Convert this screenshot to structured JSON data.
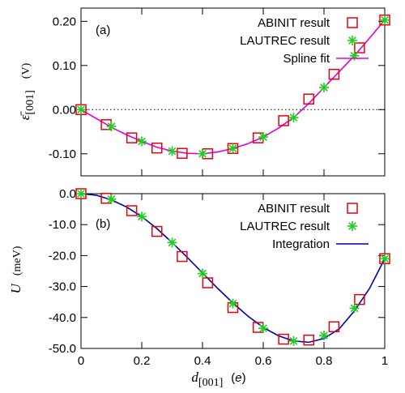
{
  "chart_data": [
    {
      "type": "scatter",
      "panel_label": "(a)",
      "ylabel_symbol": "ε̄",
      "ylabel_subscript": "[001]",
      "ylabel_unit": "(V)",
      "xlim": [
        0,
        1
      ],
      "ylim": [
        -0.15,
        0.23
      ],
      "yticks": [
        {
          "v": 0.2,
          "label": "0.20"
        },
        {
          "v": 0.1,
          "label": "0.10"
        },
        {
          "v": 0.0,
          "label": "0.00"
        },
        {
          "v": -0.1,
          "label": "-0.10"
        }
      ],
      "zero_line": true,
      "legend_position": "top-right",
      "series": [
        {
          "name": "ABINIT result",
          "marker": "open-square",
          "color": "#e8000b",
          "x": [
            0,
            0.083,
            0.167,
            0.25,
            0.333,
            0.417,
            0.5,
            0.583,
            0.667,
            0.75,
            0.833,
            0.917,
            1.0
          ],
          "y": [
            0.0,
            -0.034,
            -0.064,
            -0.087,
            -0.099,
            -0.1,
            -0.088,
            -0.064,
            -0.025,
            0.024,
            0.08,
            0.14,
            0.203
          ]
        },
        {
          "name": "LAUTREC result",
          "marker": "asterisk",
          "color": "#22cc22",
          "x": [
            0,
            0.1,
            0.2,
            0.3,
            0.4,
            0.5,
            0.6,
            0.7,
            0.8,
            0.9,
            1.0
          ],
          "y": [
            0.0,
            -0.038,
            -0.072,
            -0.094,
            -0.1,
            -0.088,
            -0.062,
            -0.018,
            0.05,
            0.122,
            0.203
          ]
        },
        {
          "name": "Spline fit",
          "line": true,
          "color": "#dd00dd",
          "x": [
            0,
            0.05,
            0.1,
            0.15,
            0.2,
            0.25,
            0.3,
            0.35,
            0.4,
            0.45,
            0.5,
            0.55,
            0.6,
            0.65,
            0.7,
            0.75,
            0.8,
            0.85,
            0.9,
            0.95,
            1.0
          ],
          "y": [
            0.0,
            -0.02,
            -0.04,
            -0.057,
            -0.072,
            -0.085,
            -0.094,
            -0.099,
            -0.1,
            -0.096,
            -0.088,
            -0.077,
            -0.062,
            -0.042,
            -0.018,
            0.014,
            0.05,
            0.086,
            0.122,
            0.162,
            0.203
          ]
        }
      ]
    },
    {
      "type": "scatter",
      "panel_label": "(b)",
      "ylabel_symbol": "U",
      "ylabel_unit": "(meV)",
      "xlabel_symbol": "d",
      "xlabel_subscript": "[001]",
      "xlabel_unit_symbol": "e",
      "xlim": [
        0,
        1
      ],
      "ylim": [
        -50,
        0
      ],
      "yticks": [
        {
          "v": 0,
          "label": "0.0"
        },
        {
          "v": -10,
          "label": "-10.0"
        },
        {
          "v": -20,
          "label": "-20.0"
        },
        {
          "v": -30,
          "label": "-30.0"
        },
        {
          "v": -40,
          "label": "-40.0"
        },
        {
          "v": -50,
          "label": "-50.0"
        }
      ],
      "xticks": [
        {
          "v": 0,
          "label": "0"
        },
        {
          "v": 0.2,
          "label": "0.2"
        },
        {
          "v": 0.4,
          "label": "0.4"
        },
        {
          "v": 0.6,
          "label": "0.6"
        },
        {
          "v": 0.8,
          "label": "0.8"
        },
        {
          "v": 1.0,
          "label": "1"
        }
      ],
      "legend_position": "top-right",
      "series": [
        {
          "name": "ABINIT result",
          "marker": "open-square",
          "color": "#e8000b",
          "x": [
            0,
            0.083,
            0.167,
            0.25,
            0.333,
            0.417,
            0.5,
            0.583,
            0.667,
            0.75,
            0.833,
            0.917,
            1.0
          ],
          "y": [
            0.0,
            -1.5,
            -5.5,
            -12.2,
            -20.3,
            -28.8,
            -36.8,
            -43.2,
            -47.0,
            -47.3,
            -43.0,
            -34.2,
            -21.0
          ]
        },
        {
          "name": "LAUTREC result",
          "marker": "asterisk",
          "color": "#22cc22",
          "x": [
            0,
            0.1,
            0.2,
            0.3,
            0.4,
            0.5,
            0.6,
            0.7,
            0.8,
            0.9,
            1.0
          ],
          "y": [
            0.0,
            -1.8,
            -7.4,
            -15.8,
            -25.8,
            -35.5,
            -43.5,
            -47.6,
            -45.8,
            -37.0,
            -21.0
          ]
        },
        {
          "name": "Integration",
          "line": true,
          "color": "#0000aa",
          "x": [
            0,
            0.05,
            0.1,
            0.15,
            0.2,
            0.25,
            0.3,
            0.35,
            0.4,
            0.45,
            0.5,
            0.55,
            0.6,
            0.65,
            0.7,
            0.75,
            0.8,
            0.85,
            0.9,
            0.95,
            1.0
          ],
          "y": [
            0.0,
            -0.5,
            -2.0,
            -4.3,
            -7.4,
            -11.3,
            -15.8,
            -20.6,
            -25.6,
            -30.6,
            -35.3,
            -39.6,
            -43.2,
            -45.9,
            -47.6,
            -48.0,
            -46.8,
            -43.7,
            -37.9,
            -30.6,
            -21.0
          ]
        }
      ]
    }
  ]
}
